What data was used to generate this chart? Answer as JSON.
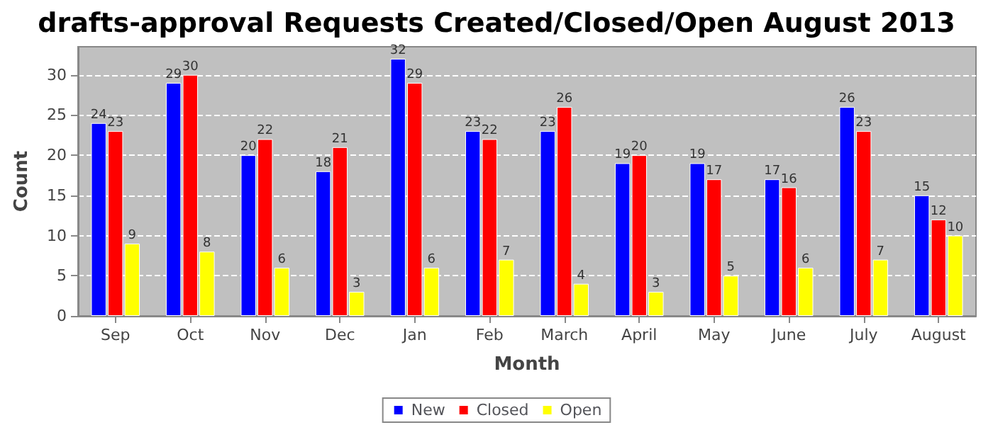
{
  "chart_data": {
    "type": "bar",
    "title": "drafts-approval Requests Created/Closed/Open August 2013",
    "xlabel": "Month",
    "ylabel": "Count",
    "categories": [
      "Sep",
      "Oct",
      "Nov",
      "Dec",
      "Jan",
      "Feb",
      "March",
      "April",
      "May",
      "June",
      "July",
      "August"
    ],
    "series": [
      {
        "name": "New",
        "color": "#0000ff",
        "values": [
          24,
          29,
          20,
          18,
          32,
          23,
          23,
          19,
          19,
          17,
          26,
          15
        ]
      },
      {
        "name": "Closed",
        "color": "#ff0000",
        "values": [
          23,
          30,
          22,
          21,
          29,
          22,
          26,
          20,
          17,
          16,
          23,
          12
        ]
      },
      {
        "name": "Open",
        "color": "#ffff00",
        "values": [
          9,
          8,
          6,
          3,
          6,
          7,
          4,
          3,
          5,
          6,
          7,
          10
        ]
      }
    ],
    "ylim": [
      0,
      33.5
    ],
    "yticks": [
      0,
      5,
      10,
      15,
      20,
      25,
      30
    ],
    "grid": "y",
    "legend": "bottom",
    "data_labels": true
  }
}
